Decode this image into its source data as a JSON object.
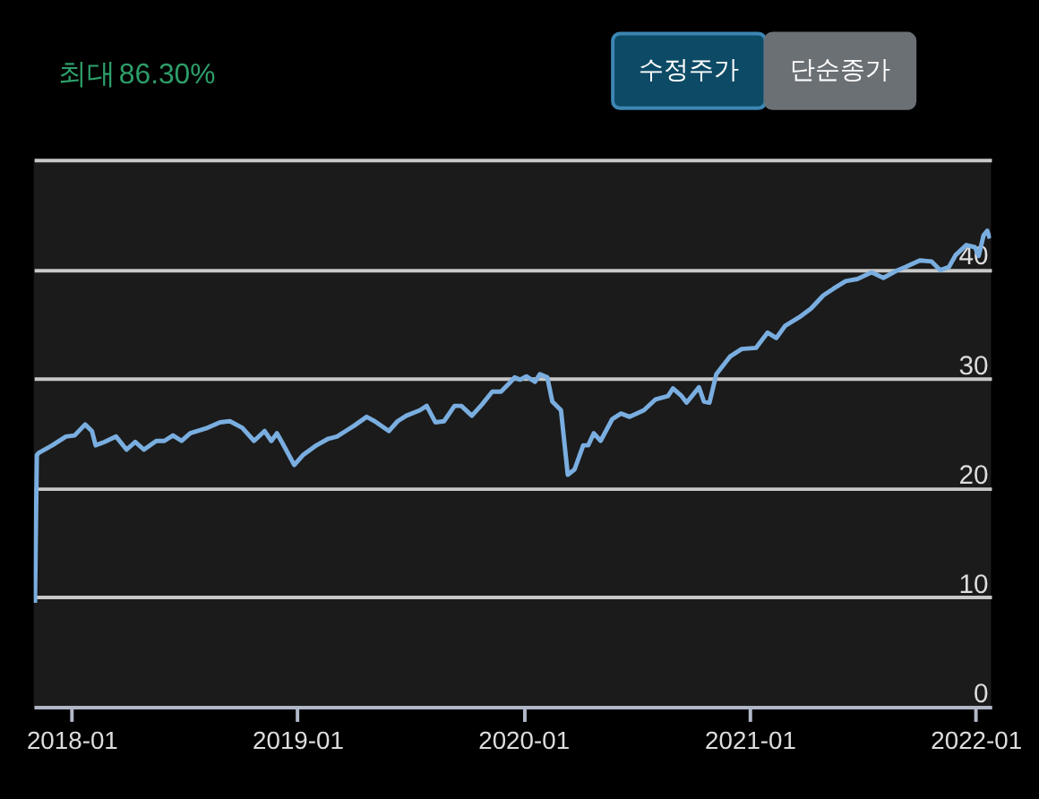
{
  "chart_data": {
    "type": "line",
    "annotations": [
      "최대",
      "86.30%",
      "수정주가",
      "단순종가"
    ],
    "xlim": [
      "2017-11-01",
      "2022-01-26"
    ],
    "xticks": [
      "2018-01",
      "2019-01",
      "2020-01",
      "2021-01",
      "2022-01"
    ],
    "ylim": [
      0,
      50
    ],
    "yticks": [
      0,
      10,
      20,
      30,
      40,
      {
        "value": 50,
        "label": null
      }
    ],
    "grid": "y",
    "marker": "none",
    "line_style": "solid",
    "x": [
      "2017-11-03",
      "2017-11-06",
      "2017-11-09",
      "2017-12-01",
      "2017-12-23",
      "2018-01-06",
      "2018-01-23",
      "2018-02-03",
      "2018-02-09",
      "2018-02-23",
      "2018-03-14",
      "2018-03-31",
      "2018-04-14",
      "2018-04-28",
      "2018-05-18",
      "2018-05-31",
      "2018-06-14",
      "2018-06-28",
      "2018-07-12",
      "2018-08-09",
      "2018-08-29",
      "2018-09-14",
      "2018-10-04",
      "2018-10-23",
      "2018-11-09",
      "2018-11-20",
      "2018-11-29",
      "2018-12-07",
      "2018-12-27",
      "2019-01-10",
      "2019-02-01",
      "2019-02-20",
      "2019-03-06",
      "2019-03-20",
      "2019-04-03",
      "2019-04-23",
      "2019-05-06",
      "2019-05-29",
      "2019-06-12",
      "2019-06-26",
      "2019-07-18",
      "2019-07-29",
      "2019-08-12",
      "2019-08-26",
      "2019-09-12",
      "2019-09-23",
      "2019-10-10",
      "2019-10-26",
      "2019-11-12",
      "2019-11-26",
      "2019-12-10",
      "2019-12-18",
      "2019-12-27",
      "2020-01-06",
      "2020-01-20",
      "2020-01-28",
      "2020-02-09",
      "2020-02-17",
      "2020-03-02",
      "2020-03-13",
      "2020-03-24",
      "2020-04-07",
      "2020-04-15",
      "2020-04-24",
      "2020-05-05",
      "2020-05-24",
      "2020-06-07",
      "2020-06-21",
      "2020-07-14",
      "2020-08-02",
      "2020-08-22",
      "2020-08-30",
      "2020-09-13",
      "2020-09-21",
      "2020-10-11",
      "2020-10-19",
      "2020-10-28",
      "2020-11-08",
      "2020-11-30",
      "2020-12-19",
      "2021-01-11",
      "2021-01-30",
      "2021-02-13",
      "2021-02-27",
      "2021-03-22",
      "2021-04-10",
      "2021-04-30",
      "2021-05-16",
      "2021-06-05",
      "2021-06-24",
      "2021-07-17",
      "2021-08-05",
      "2021-08-28",
      "2021-09-10",
      "2021-10-03",
      "2021-10-22",
      "2021-11-05",
      "2021-11-19",
      "2021-11-30",
      "2021-12-17",
      "2021-12-31",
      "2022-01-06",
      "2022-01-14",
      "2022-01-20",
      "2022-01-24"
    ],
    "series": [
      {
        "color": "#7aaee0",
        "values": [
          9.5,
          23.0,
          23.2,
          23.9,
          24.7,
          24.8,
          25.8,
          25.2,
          23.9,
          24.2,
          24.7,
          23.5,
          24.2,
          23.5,
          24.3,
          24.3,
          24.8,
          24.3,
          25.0,
          25.5,
          26.0,
          26.1,
          25.5,
          24.3,
          25.2,
          24.3,
          25.0,
          24.2,
          22.1,
          23.0,
          23.9,
          24.5,
          24.7,
          25.2,
          25.7,
          26.5,
          26.1,
          25.2,
          26.1,
          26.6,
          27.1,
          27.5,
          26.0,
          26.1,
          27.5,
          27.5,
          26.6,
          27.6,
          28.8,
          28.8,
          29.6,
          30.1,
          29.9,
          30.2,
          29.7,
          30.4,
          30.1,
          27.9,
          27.1,
          21.2,
          21.7,
          23.9,
          23.9,
          25.0,
          24.3,
          26.3,
          26.8,
          26.5,
          27.1,
          28.1,
          28.4,
          29.1,
          28.4,
          27.8,
          29.2,
          27.9,
          27.8,
          30.4,
          32.0,
          32.7,
          32.8,
          34.2,
          33.7,
          34.8,
          35.6,
          36.4,
          37.6,
          38.2,
          38.9,
          39.1,
          39.7,
          39.2,
          39.9,
          40.2,
          40.8,
          40.7,
          39.9,
          40.2,
          41.3,
          42.2,
          42.0,
          41.2,
          43.1,
          43.5,
          42.8
        ]
      }
    ]
  }
}
